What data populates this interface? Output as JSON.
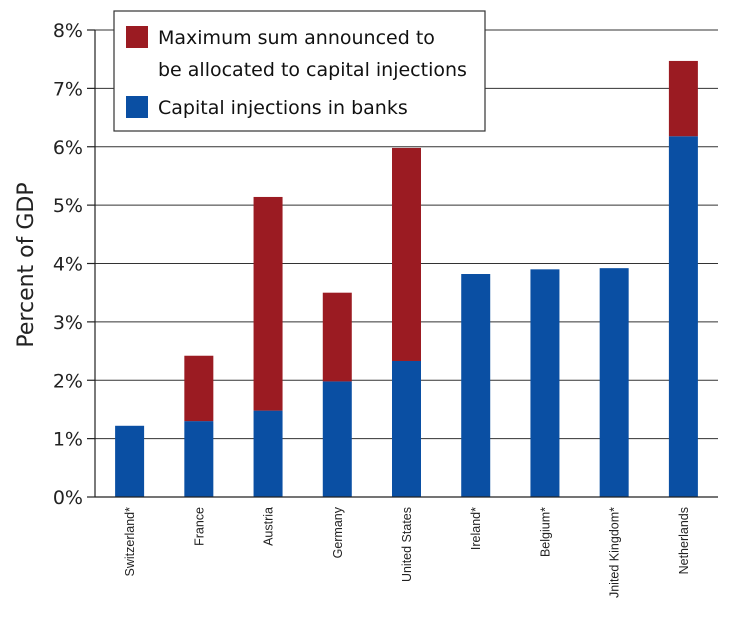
{
  "chart_data": {
    "type": "bar",
    "stacked": true,
    "title": "",
    "xlabel": "",
    "ylabel": "Percent of GDP",
    "ylim": [
      0,
      8
    ],
    "y_ticks": [
      "0%",
      "1%",
      "2%",
      "3%",
      "4%",
      "5%",
      "6%",
      "7%",
      "8%"
    ],
    "grid": true,
    "legend_position": "top-left",
    "categories": [
      "Switzerland*",
      "France",
      "Austria",
      "Germany",
      "United States",
      "Ireland*",
      "Belgium*",
      "Jnited Kingdom*",
      "Netherlands"
    ],
    "series": [
      {
        "name": "Capital injections in banks",
        "color": "#0a4fa3",
        "values": [
          1.22,
          1.3,
          1.48,
          1.98,
          2.33,
          3.82,
          3.9,
          3.92,
          6.18
        ]
      },
      {
        "name": "Maximum sum announced to be allocated to capital injections",
        "name_lines": [
          "Maximum sum announced to",
          "be allocated to capital injections"
        ],
        "color": "#9b1b22",
        "values": [
          0,
          1.12,
          3.66,
          1.52,
          3.65,
          0,
          0,
          0,
          1.29
        ]
      }
    ]
  }
}
